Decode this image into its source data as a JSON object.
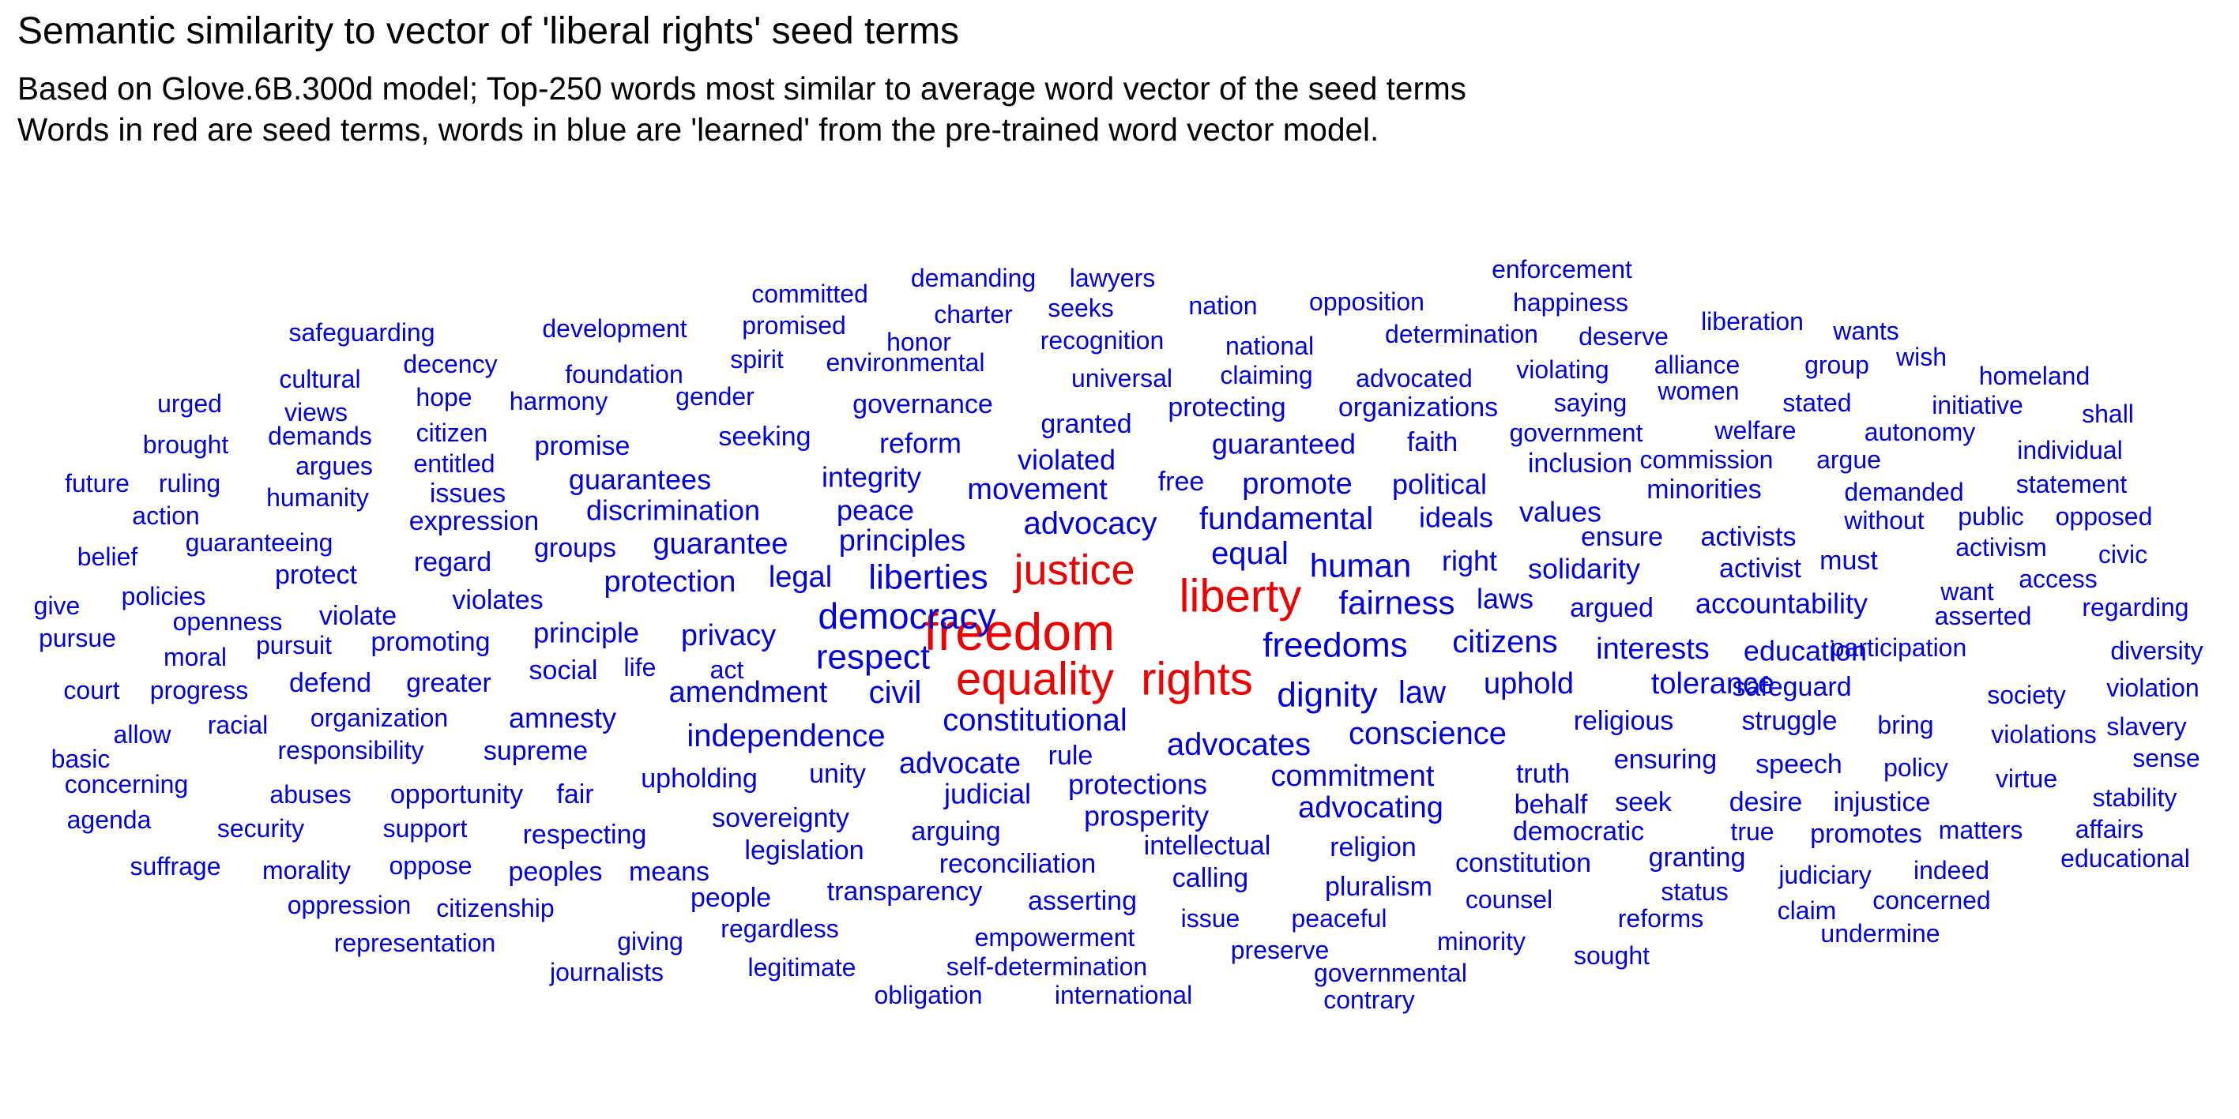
{
  "title": "Semantic similarity to vector of 'liberal rights' seed terms",
  "subtitle_lines": [
    "Based on Glove.6B.300d model; Top-250 words most similar to average word vector of the seed terms",
    "Words in red are seed terms, words in blue are 'learned' from the pre-trained word vector model."
  ],
  "colors": {
    "seed": "#ee0000",
    "learned": "#0000dd",
    "background": "#ffffff"
  },
  "chart_data": {
    "type": "wordcloud",
    "title": "Semantic similarity to vector of 'liberal rights' seed terms",
    "seed_terms": [
      "freedom",
      "liberty",
      "equality",
      "rights",
      "justice"
    ],
    "words": [
      {
        "w": "freedom",
        "seed": true
      },
      {
        "w": "liberty",
        "seed": true
      },
      {
        "w": "equality",
        "seed": true
      },
      {
        "w": "rights",
        "seed": true
      },
      {
        "w": "justice",
        "seed": true
      },
      {
        "w": "democracy"
      },
      {
        "w": "freedoms"
      },
      {
        "w": "liberties"
      },
      {
        "w": "respect"
      },
      {
        "w": "fairness"
      },
      {
        "w": "dignity"
      },
      {
        "w": "human"
      },
      {
        "w": "citizens"
      },
      {
        "w": "constitutional"
      },
      {
        "w": "equal"
      },
      {
        "w": "fundamental"
      },
      {
        "w": "advocacy"
      },
      {
        "w": "conscience"
      },
      {
        "w": "advocates"
      },
      {
        "w": "independence"
      },
      {
        "w": "civil"
      },
      {
        "w": "law"
      },
      {
        "w": "amendment"
      },
      {
        "w": "uphold"
      },
      {
        "w": "tolerance"
      },
      {
        "w": "principles"
      },
      {
        "w": "interests"
      },
      {
        "w": "movement"
      },
      {
        "w": "privacy"
      },
      {
        "w": "legal"
      },
      {
        "w": "protection"
      },
      {
        "w": "commitment"
      },
      {
        "w": "advocating"
      },
      {
        "w": "advocate"
      },
      {
        "w": "education"
      },
      {
        "w": "accountability"
      },
      {
        "w": "solidarity"
      },
      {
        "w": "laws"
      },
      {
        "w": "right"
      },
      {
        "w": "ideals"
      },
      {
        "w": "guarantee"
      },
      {
        "w": "promote"
      },
      {
        "w": "political"
      },
      {
        "w": "guaranteed"
      },
      {
        "w": "values"
      },
      {
        "w": "peace"
      },
      {
        "w": "integrity"
      },
      {
        "w": "discrimination"
      },
      {
        "w": "guarantees"
      },
      {
        "w": "reform"
      },
      {
        "w": "seeking"
      },
      {
        "w": "governance"
      },
      {
        "w": "free"
      },
      {
        "w": "violated"
      },
      {
        "w": "granted"
      },
      {
        "w": "protecting"
      },
      {
        "w": "organizations"
      },
      {
        "w": "faith"
      },
      {
        "w": "government"
      },
      {
        "w": "inclusion"
      },
      {
        "w": "commission"
      },
      {
        "w": "argue"
      },
      {
        "w": "minorities"
      },
      {
        "w": "ensure"
      },
      {
        "w": "activists"
      },
      {
        "w": "argued"
      },
      {
        "w": "activist"
      },
      {
        "w": "must"
      },
      {
        "w": "religious"
      },
      {
        "w": "struggle"
      },
      {
        "w": "safeguard"
      },
      {
        "w": "participation"
      },
      {
        "w": "ensuring"
      },
      {
        "w": "speech"
      },
      {
        "w": "truth"
      },
      {
        "w": "behalf"
      },
      {
        "w": "seek"
      },
      {
        "w": "desire"
      },
      {
        "w": "injustice"
      },
      {
        "w": "protections"
      },
      {
        "w": "prosperity"
      },
      {
        "w": "judicial"
      },
      {
        "w": "rule"
      },
      {
        "w": "unity"
      },
      {
        "w": "upholding"
      },
      {
        "w": "sovereignty"
      },
      {
        "w": "arguing"
      },
      {
        "w": "intellectual"
      },
      {
        "w": "religion"
      },
      {
        "w": "democratic"
      },
      {
        "w": "true"
      },
      {
        "w": "promotes"
      },
      {
        "w": "matters"
      },
      {
        "w": "affairs"
      },
      {
        "w": "constitution"
      },
      {
        "w": "granting"
      },
      {
        "w": "judiciary"
      },
      {
        "w": "indeed"
      },
      {
        "w": "educational"
      },
      {
        "w": "pluralism"
      },
      {
        "w": "calling"
      },
      {
        "w": "reconciliation"
      },
      {
        "w": "legislation"
      },
      {
        "w": "transparency"
      },
      {
        "w": "asserting"
      },
      {
        "w": "counsel"
      },
      {
        "w": "status"
      },
      {
        "w": "claim"
      },
      {
        "w": "concerned"
      },
      {
        "w": "reforms"
      },
      {
        "w": "undermine"
      },
      {
        "w": "issue"
      },
      {
        "w": "peaceful"
      },
      {
        "w": "minority"
      },
      {
        "w": "sought"
      },
      {
        "w": "empowerment"
      },
      {
        "w": "preserve"
      },
      {
        "w": "self-determination"
      },
      {
        "w": "governmental"
      },
      {
        "w": "obligation"
      },
      {
        "w": "international"
      },
      {
        "w": "contrary"
      },
      {
        "w": "legitimate"
      },
      {
        "w": "regardless"
      },
      {
        "w": "people"
      },
      {
        "w": "peoples"
      },
      {
        "w": "means"
      },
      {
        "w": "respecting"
      },
      {
        "w": "giving"
      },
      {
        "w": "journalists"
      },
      {
        "w": "representation"
      },
      {
        "w": "citizenship"
      },
      {
        "w": "oppression"
      },
      {
        "w": "morality"
      },
      {
        "w": "oppose"
      },
      {
        "w": "suffrage"
      },
      {
        "w": "security"
      },
      {
        "w": "support"
      },
      {
        "w": "abuses"
      },
      {
        "w": "opportunity"
      },
      {
        "w": "fair"
      },
      {
        "w": "agenda"
      },
      {
        "w": "concerning"
      },
      {
        "w": "basic"
      },
      {
        "w": "supreme"
      },
      {
        "w": "responsibility"
      },
      {
        "w": "allow"
      },
      {
        "w": "racial"
      },
      {
        "w": "organization"
      },
      {
        "w": "amnesty"
      },
      {
        "w": "progress"
      },
      {
        "w": "court"
      },
      {
        "w": "defend"
      },
      {
        "w": "greater"
      },
      {
        "w": "social"
      },
      {
        "w": "life"
      },
      {
        "w": "act"
      },
      {
        "w": "moral"
      },
      {
        "w": "pursuit"
      },
      {
        "w": "promoting"
      },
      {
        "w": "principle"
      },
      {
        "w": "pursue"
      },
      {
        "w": "openness"
      },
      {
        "w": "violate"
      },
      {
        "w": "give"
      },
      {
        "w": "policies"
      },
      {
        "w": "violates"
      },
      {
        "w": "belief"
      },
      {
        "w": "protect"
      },
      {
        "w": "regard"
      },
      {
        "w": "guaranteeing"
      },
      {
        "w": "groups"
      },
      {
        "w": "action"
      },
      {
        "w": "expression"
      },
      {
        "w": "humanity"
      },
      {
        "w": "issues"
      },
      {
        "w": "future"
      },
      {
        "w": "ruling"
      },
      {
        "w": "argues"
      },
      {
        "w": "entitled"
      },
      {
        "w": "promise"
      },
      {
        "w": "brought"
      },
      {
        "w": "demands"
      },
      {
        "w": "citizen"
      },
      {
        "w": "urged"
      },
      {
        "w": "views"
      },
      {
        "w": "hope"
      },
      {
        "w": "harmony"
      },
      {
        "w": "cultural"
      },
      {
        "w": "decency"
      },
      {
        "w": "foundation"
      },
      {
        "w": "gender"
      },
      {
        "w": "safeguarding"
      },
      {
        "w": "development"
      },
      {
        "w": "promised"
      },
      {
        "w": "spirit"
      },
      {
        "w": "environmental"
      },
      {
        "w": "committed"
      },
      {
        "w": "demanding"
      },
      {
        "w": "lawyers"
      },
      {
        "w": "charter"
      },
      {
        "w": "seeks"
      },
      {
        "w": "honor"
      },
      {
        "w": "recognition"
      },
      {
        "w": "nation"
      },
      {
        "w": "opposition"
      },
      {
        "w": "national"
      },
      {
        "w": "universal"
      },
      {
        "w": "claiming"
      },
      {
        "w": "advocated"
      },
      {
        "w": "determination"
      },
      {
        "w": "deserve"
      },
      {
        "w": "enforcement"
      },
      {
        "w": "happiness"
      },
      {
        "w": "liberation"
      },
      {
        "w": "wants"
      },
      {
        "w": "violating"
      },
      {
        "w": "alliance"
      },
      {
        "w": "group"
      },
      {
        "w": "wish"
      },
      {
        "w": "homeland"
      },
      {
        "w": "saying"
      },
      {
        "w": "women"
      },
      {
        "w": "stated"
      },
      {
        "w": "initiative"
      },
      {
        "w": "shall"
      },
      {
        "w": "welfare"
      },
      {
        "w": "autonomy"
      },
      {
        "w": "individual"
      },
      {
        "w": "demanded"
      },
      {
        "w": "statement"
      },
      {
        "w": "without"
      },
      {
        "w": "public"
      },
      {
        "w": "opposed"
      },
      {
        "w": "activism"
      },
      {
        "w": "civic"
      },
      {
        "w": "want"
      },
      {
        "w": "access"
      },
      {
        "w": "asserted"
      },
      {
        "w": "regarding"
      },
      {
        "w": "diversity"
      },
      {
        "w": "society"
      },
      {
        "w": "violation"
      },
      {
        "w": "bring"
      },
      {
        "w": "violations"
      },
      {
        "w": "slavery"
      },
      {
        "w": "policy"
      },
      {
        "w": "virtue"
      },
      {
        "w": "sense"
      },
      {
        "w": "stability"
      }
    ]
  }
}
